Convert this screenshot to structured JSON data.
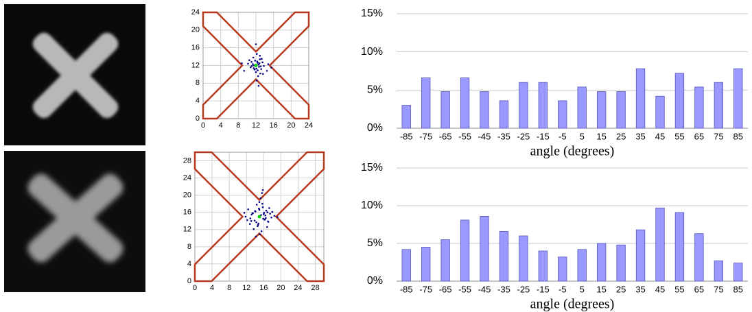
{
  "chart_data": [
    {
      "type": "scatter",
      "xlim": [
        0,
        24
      ],
      "ylim": [
        0,
        24
      ],
      "xticks": [
        0,
        4,
        8,
        12,
        16,
        20,
        24
      ],
      "yticks": [
        0,
        4,
        8,
        12,
        16,
        20,
        24
      ],
      "grid": true,
      "series": [
        {
          "color": "#000080",
          "x": [
            12.1,
            11.5,
            12.8,
            13.2,
            11.0,
            12.4,
            11.8,
            12.6,
            13.5,
            10.8,
            12.0,
            11.3,
            12.9,
            13.8,
            11.7,
            12.3,
            10.2,
            14.5,
            12.7,
            11.4,
            13.0,
            12.2,
            11.9,
            12.5,
            9.3,
            14.8,
            12.0,
            13.3,
            11.1,
            12.6,
            15.5,
            12.4,
            10.5,
            13.6,
            12.1,
            11.6,
            12.9,
            8.8,
            12.2,
            13.1
          ],
          "y": [
            12.0,
            11.4,
            12.5,
            11.2,
            12.8,
            10.9,
            13.1,
            12.2,
            12.7,
            11.6,
            10.5,
            12.3,
            13.4,
            11.9,
            11.1,
            12.9,
            12.4,
            10.8,
            11.7,
            13.8,
            10.2,
            14.6,
            12.1,
            9.6,
            10.8,
            12.3,
            16.8,
            13.5,
            11.9,
            7.4,
            11.5,
            12.6,
            13.2,
            10.1,
            11.3,
            12.0,
            14.2,
            12.5,
            8.6,
            11.8
          ]
        },
        {
          "color": "#00cc00",
          "x": [
            12
          ],
          "y": [
            12
          ]
        }
      ]
    },
    {
      "type": "bar",
      "x_label": "angle (degrees)",
      "color": "#9999ff",
      "categories": [
        "-85",
        "-75",
        "-65",
        "-55",
        "-45",
        "-35",
        "-25",
        "-15",
        "-5",
        "5",
        "15",
        "25",
        "35",
        "45",
        "55",
        "65",
        "75",
        "85"
      ],
      "values": [
        3,
        6.6,
        4.8,
        6.6,
        4.8,
        3.6,
        6,
        6,
        3.6,
        5.4,
        4.8,
        4.8,
        7.8,
        4.2,
        7.2,
        5.4,
        6,
        7.8
      ],
      "ylim": [
        0,
        15
      ],
      "yticks": [
        {
          "value": 0,
          "label": "0%"
        },
        {
          "value": 5,
          "label": "5%"
        },
        {
          "value": 10,
          "label": "10%"
        },
        {
          "value": 15,
          "label": "15%"
        }
      ],
      "grid": true
    },
    {
      "type": "scatter",
      "xlim": [
        0,
        30
      ],
      "ylim": [
        0,
        30
      ],
      "xticks": [
        0,
        4,
        8,
        12,
        16,
        20,
        24,
        28
      ],
      "yticks": [
        0,
        4,
        8,
        12,
        16,
        20,
        24,
        28
      ],
      "grid": true,
      "series": [
        {
          "color": "#000080",
          "x": [
            15.2,
            14.1,
            16.3,
            13.5,
            17.0,
            15.8,
            12.9,
            14.6,
            16.9,
            15.0,
            13.2,
            17.8,
            14.8,
            16.1,
            12.4,
            15.5,
            18.5,
            13.9,
            15.3,
            16.6,
            11.8,
            14.3,
            17.3,
            15.9,
            13.7,
            16.0,
            14.9,
            19.2,
            12.8,
            15.6,
            16.4,
            14.4,
            13.1,
            17.5,
            15.1,
            14.0,
            16.8,
            15.4,
            12.2,
            18.0,
            14.7,
            15.7,
            13.4,
            16.2,
            15.0,
            14.2,
            17.1,
            11.5,
            15.8,
            16.5
          ],
          "y": [
            15.1,
            16.2,
            14.3,
            15.8,
            13.9,
            17.2,
            14.6,
            12.8,
            16.0,
            18.4,
            15.5,
            14.8,
            13.4,
            15.9,
            16.7,
            11.6,
            15.2,
            14.1,
            19.3,
            16.4,
            15.0,
            13.7,
            17.0,
            14.5,
            12.1,
            15.6,
            16.9,
            14.9,
            13.3,
            20.5,
            15.3,
            17.8,
            14.0,
            15.7,
            10.9,
            16.3,
            12.6,
            15.4,
            14.2,
            16.1,
            13.1,
            18.0,
            15.8,
            14.4,
            16.6,
            10.4,
            13.8,
            15.9,
            21.2,
            14.7
          ]
        },
        {
          "color": "#00cc00",
          "x": [
            15
          ],
          "y": [
            15
          ]
        }
      ]
    },
    {
      "type": "bar",
      "x_label": "angle (degrees)",
      "color": "#9999ff",
      "categories": [
        "-85",
        "-75",
        "-65",
        "-55",
        "-45",
        "-35",
        "-25",
        "-15",
        "-5",
        "5",
        "15",
        "25",
        "35",
        "45",
        "55",
        "65",
        "75",
        "85"
      ],
      "values": [
        4.2,
        4.5,
        5.5,
        8.1,
        8.6,
        6.6,
        6,
        4,
        3.2,
        4.2,
        5,
        4.8,
        6.8,
        9.7,
        9.1,
        6.3,
        2.7,
        2.4
      ],
      "ylim": [
        0,
        15
      ],
      "yticks": [
        {
          "value": 0,
          "label": "0%"
        },
        {
          "value": 5,
          "label": "5%"
        },
        {
          "value": 10,
          "label": "10%"
        },
        {
          "value": 15,
          "label": "15%"
        }
      ],
      "grid": true
    }
  ]
}
